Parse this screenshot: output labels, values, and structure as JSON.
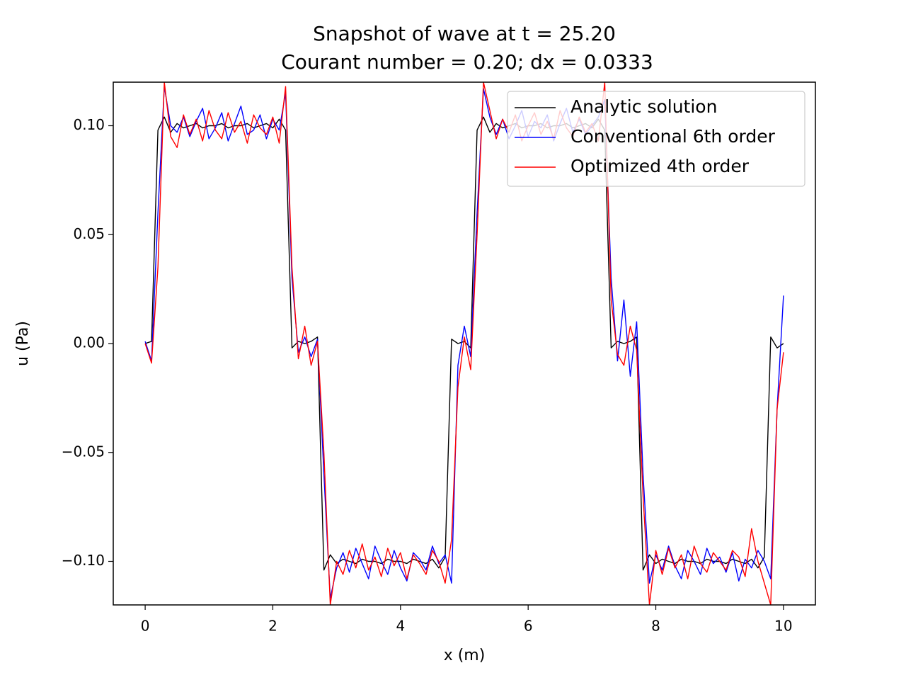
{
  "chart_data": {
    "type": "line",
    "title": "Snapshot of wave at t = 25.20",
    "subtitle": "Courant number = 0.20; dx = 0.0333",
    "xlabel": "x (m)",
    "ylabel": "u (Pa)",
    "xlim": [
      -0.5,
      10.5
    ],
    "ylim": [
      -0.12,
      0.12
    ],
    "xticks": [
      0,
      2,
      4,
      6,
      8,
      10
    ],
    "yticks": [
      {
        "value": -0.1,
        "label": "−0.10"
      },
      {
        "value": -0.05,
        "label": "−0.05"
      },
      {
        "value": 0,
        "label": "0.00"
      },
      {
        "value": 0.05,
        "label": "0.05"
      },
      {
        "value": 0.1,
        "label": "0.10"
      }
    ],
    "legend": "upper right",
    "grid": false,
    "x": [
      0,
      0.1,
      0.2,
      0.3,
      0.4,
      0.5,
      0.6,
      0.7,
      0.8,
      0.9,
      1,
      1.1,
      1.2,
      1.3,
      1.4,
      1.5,
      1.6,
      1.7,
      1.8,
      1.9,
      2,
      2.1,
      2.2,
      2.3,
      2.4,
      2.5,
      2.6,
      2.7,
      2.8,
      2.9,
      3,
      3.1,
      3.2,
      3.3,
      3.4,
      3.5,
      3.6,
      3.7,
      3.8,
      3.9,
      4,
      4.1,
      4.2,
      4.3,
      4.4,
      4.5,
      4.6,
      4.7,
      4.8,
      4.9,
      5,
      5.1,
      5.2,
      5.3,
      5.4,
      5.5,
      5.6,
      5.7,
      5.8,
      5.9,
      6,
      6.1,
      6.2,
      6.3,
      6.4,
      6.5,
      6.6,
      6.7,
      6.8,
      6.9,
      7,
      7.1,
      7.2,
      7.3,
      7.4,
      7.5,
      7.6,
      7.7,
      7.8,
      7.9,
      8,
      8.1,
      8.2,
      8.3,
      8.4,
      8.5,
      8.6,
      8.7,
      8.8,
      8.9,
      9,
      9.1,
      9.2,
      9.3,
      9.4,
      9.5,
      9.6,
      9.7,
      9.8,
      9.9,
      10
    ],
    "series": [
      {
        "name": "Analytic solution",
        "color": "#000000",
        "values": [
          0,
          0.001,
          0.098,
          0.104,
          0.097,
          0.101,
          0.099,
          0.1,
          0.101,
          0.099,
          0.1,
          0.1,
          0.101,
          0.099,
          0.1,
          0.1,
          0.101,
          0.099,
          0.1,
          0.101,
          0.099,
          0.103,
          0.098,
          -0.002,
          0.001,
          0,
          0.001,
          0.003,
          -0.104,
          -0.097,
          -0.101,
          -0.099,
          -0.1,
          -0.101,
          -0.099,
          -0.1,
          -0.1,
          -0.101,
          -0.099,
          -0.1,
          -0.1,
          -0.101,
          -0.099,
          -0.1,
          -0.101,
          -0.099,
          -0.103,
          -0.098,
          0.002,
          0,
          0.001,
          -0.002,
          0.098,
          0.104,
          0.097,
          0.101,
          0.099,
          0.1,
          0.101,
          0.099,
          0.1,
          0.1,
          0.101,
          0.099,
          0.1,
          0.1,
          0.101,
          0.099,
          0.1,
          0.101,
          0.099,
          0.103,
          0.098,
          -0.002,
          0.001,
          0,
          0.001,
          0.003,
          -0.104,
          -0.097,
          -0.101,
          -0.099,
          -0.1,
          -0.101,
          -0.099,
          -0.1,
          -0.1,
          -0.101,
          -0.099,
          -0.1,
          -0.1,
          -0.101,
          -0.099,
          -0.1,
          -0.101,
          -0.099,
          -0.103,
          -0.098,
          0.003,
          -0.002,
          0
        ]
      },
      {
        "name": "Conventional 6th order",
        "color": "#0000ff",
        "values": [
          0.001,
          -0.008,
          0.06,
          0.118,
          0.1,
          0.097,
          0.104,
          0.095,
          0.102,
          0.108,
          0.094,
          0.099,
          0.106,
          0.093,
          0.101,
          0.109,
          0.096,
          0.098,
          0.105,
          0.094,
          0.103,
          0.098,
          0.115,
          0.03,
          -0.004,
          0.003,
          -0.006,
          0.002,
          -0.06,
          -0.117,
          -0.103,
          -0.096,
          -0.105,
          -0.094,
          -0.101,
          -0.108,
          -0.093,
          -0.1,
          -0.106,
          -0.095,
          -0.103,
          -0.109,
          -0.096,
          -0.099,
          -0.104,
          -0.093,
          -0.101,
          -0.097,
          -0.11,
          -0.01,
          0.008,
          -0.006,
          0.06,
          0.117,
          0.104,
          0.096,
          0.103,
          0.094,
          0.1,
          0.107,
          0.095,
          0.102,
          0.099,
          0.105,
          0.093,
          0.101,
          0.108,
          0.097,
          0.103,
          0.096,
          0.1,
          0.104,
          0.112,
          0.03,
          -0.008,
          0.02,
          -0.015,
          0.01,
          -0.06,
          -0.11,
          -0.097,
          -0.104,
          -0.093,
          -0.102,
          -0.108,
          -0.095,
          -0.1,
          -0.106,
          -0.094,
          -0.101,
          -0.098,
          -0.105,
          -0.096,
          -0.109,
          -0.099,
          -0.103,
          -0.095,
          -0.1,
          -0.108,
          -0.03,
          0.022
        ]
      },
      {
        "name": "Optimized 4th order",
        "color": "#ff0000",
        "values": [
          0,
          -0.009,
          0.035,
          0.12,
          0.095,
          0.09,
          0.105,
          0.096,
          0.103,
          0.093,
          0.107,
          0.098,
          0.094,
          0.106,
          0.097,
          0.102,
          0.092,
          0.105,
          0.099,
          0.096,
          0.104,
          0.092,
          0.118,
          0.035,
          -0.007,
          0.008,
          -0.01,
          0.001,
          -0.05,
          -0.12,
          -0.1,
          -0.106,
          -0.095,
          -0.103,
          -0.092,
          -0.104,
          -0.098,
          -0.107,
          -0.094,
          -0.102,
          -0.096,
          -0.108,
          -0.097,
          -0.101,
          -0.106,
          -0.095,
          -0.1,
          -0.11,
          -0.09,
          -0.02,
          0.003,
          -0.012,
          0.05,
          0.12,
          0.107,
          0.094,
          0.103,
          0.097,
          0.105,
          0.093,
          0.1,
          0.106,
          0.096,
          0.102,
          0.094,
          0.107,
          0.099,
          0.095,
          0.104,
          0.097,
          0.101,
          0.093,
          0.12,
          0.02,
          -0.005,
          -0.01,
          0.008,
          -0.003,
          -0.07,
          -0.12,
          -0.095,
          -0.106,
          -0.094,
          -0.103,
          -0.097,
          -0.108,
          -0.093,
          -0.101,
          -0.105,
          -0.096,
          -0.1,
          -0.104,
          -0.095,
          -0.098,
          -0.107,
          -0.085,
          -0.1,
          -0.11,
          -0.12,
          -0.03,
          -0.004
        ]
      }
    ]
  }
}
